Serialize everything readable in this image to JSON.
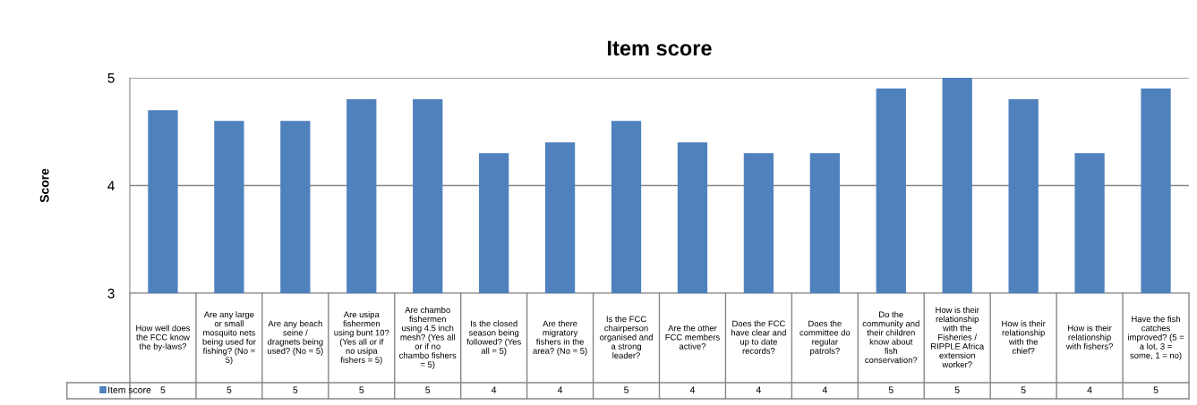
{
  "chart_data": {
    "type": "bar",
    "title": "Item score",
    "ylabel": "Score",
    "categories": [
      "How well does the FCC know the by-laws?",
      "Are any large or small mosquito nets being used for fishing? (No = 5)",
      "Are any beach seine / dragnets being used? (No = 5)",
      "Are usipa fishermen using bunt 10? (Yes all or if no usipa fishers = 5)",
      "Are chambo fishermen using 4.5 inch mesh? (Yes all or if no chambo fishers = 5)",
      "Is the closed season being followed? (Yes all = 5)",
      "Are there migratory fishers in the area? (No = 5)",
      "Is the FCC chairperson organised and a strong leader?",
      "Are the other FCC members active?",
      "Does the FCC have clear and up to date records?",
      "Does the committee do regular patrols?",
      "Do the community and their children know about fish conservation?",
      "How is their relationship with the Fisheries / RIPPLE Africa extension worker?",
      "How is their relationship with the chief?",
      "How is their relationship with fishers?",
      "Have the fish catches improved? (5 = a lot, 3 = some, 1 = no)"
    ],
    "series": [
      {
        "name": "Item score",
        "color": "#4f81bd",
        "values": [
          4.7,
          4.6,
          4.6,
          4.8,
          4.8,
          4.3,
          4.4,
          4.6,
          4.4,
          4.3,
          4.3,
          4.9,
          5.0,
          4.8,
          4.3,
          4.9
        ],
        "value_labels": [
          "5",
          "5",
          "5",
          "5",
          "5",
          "4",
          "4",
          "5",
          "4",
          "4",
          "4",
          "5",
          "5",
          "5",
          "4",
          "5"
        ]
      }
    ],
    "ylim": [
      3,
      5
    ],
    "yticks": [
      3,
      4,
      5
    ],
    "grid": "y",
    "legend": "bottom left"
  }
}
